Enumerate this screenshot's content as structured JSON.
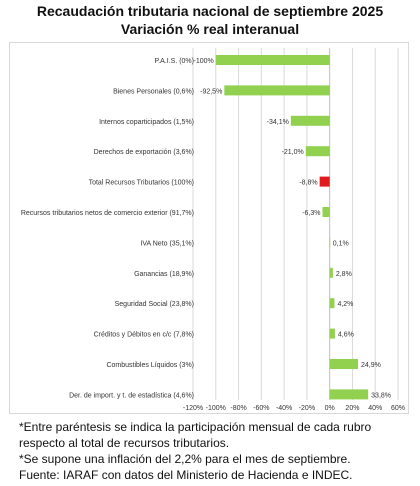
{
  "header": {
    "title": "Recaudación tributaria nacional de septiembre 2025",
    "subtitle": "Variación % real interanual"
  },
  "chart_data": {
    "type": "bar",
    "orientation": "horizontal",
    "categories": [
      "P.A.I.S. (0%)",
      "Bienes Personales (0,6%)",
      "Internos coparticipados (1,5%)",
      "Derechos de exportación (3,6%)",
      "Total Recursos Tributarios (100%)",
      "Recursos tributarios netos de comercio exterior (91,7%)",
      "IVA Neto (35,1%)",
      "Ganancias (18,9%)",
      "Seguridad Social (23,8%)",
      "Créditos y Débitos en c/c (7,8%)",
      "Combustibles Líquidos (3%)",
      "Der. de import. y t. de estadística (4,6%)"
    ],
    "values": [
      -100,
      -92.5,
      -34.1,
      -21.0,
      -8.8,
      -6.3,
      0.1,
      2.8,
      4.2,
      4.6,
      24.9,
      33.8
    ],
    "value_labels": [
      "-100%",
      "-92,5%",
      "-34,1%",
      "-21,0%",
      "-8,8%",
      "-6,3%",
      "0,1%",
      "2,8%",
      "4,2%",
      "4,6%",
      "24,9%",
      "33,8%"
    ],
    "xlim": [
      -120,
      60
    ],
    "xticks": [
      -120,
      -100,
      -80,
      -60,
      -40,
      -20,
      0,
      20,
      40,
      60
    ],
    "xtick_labels": [
      "-120%",
      "-100%",
      "-80%",
      "-60%",
      "-40%",
      "-20%",
      "0%",
      "20%",
      "40%",
      "60%"
    ],
    "grid": "vertical",
    "legend": "none",
    "colors": {
      "bar": "#92d050",
      "highlight": "#e01b1b",
      "grid": "#d9d9d9",
      "axis": "#bfbfbf"
    },
    "highlight_category": "Total Recursos Tributarios (100%)"
  },
  "notes": [
    "*Entre paréntesis se indica la participación mensual de cada rubro",
    "respecto al total de recursos tributarios.",
    "*Se supone una inflación del 2,2% para el mes de septiembre.",
    "Fuente: IARAF con datos del Ministerio de Hacienda e INDEC."
  ]
}
